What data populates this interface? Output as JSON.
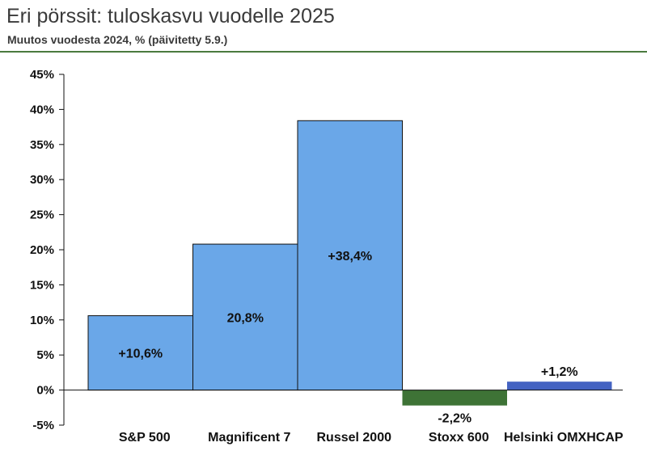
{
  "title": "Eri pörssit: tuloskasvu vuodelle 2025",
  "subtitle": "Muutos vuodesta 2024, % (päivitetty 5.9.)",
  "chart_data": {
    "type": "bar",
    "categories": [
      "S&P 500",
      "Magnificent 7",
      "Russel 2000",
      "Stoxx 600",
      "Helsinki OMXHCAP"
    ],
    "values": [
      10.6,
      20.8,
      38.4,
      -2.2,
      1.2
    ],
    "data_labels": [
      "+10,6%",
      "20,8%",
      "+38,4%",
      "-2,2%",
      "+1,2%"
    ],
    "label_position": [
      "inside",
      "inside",
      "inside",
      "below",
      "above"
    ],
    "colors": [
      "#6aa7e8",
      "#6aa7e8",
      "#6aa7e8",
      "#3e7336",
      "#4463c2"
    ],
    "ylim": [
      -5,
      45
    ],
    "yticks": [
      45,
      40,
      35,
      30,
      25,
      20,
      15,
      10,
      5,
      0,
      -5
    ],
    "ytick_labels": [
      "45%",
      "40%",
      "35%",
      "30%",
      "25%",
      "20%",
      "15%",
      "10%",
      "5%",
      "0%",
      "-5%"
    ],
    "xlabel": "",
    "ylabel": "",
    "grid": false,
    "legend": "none"
  }
}
